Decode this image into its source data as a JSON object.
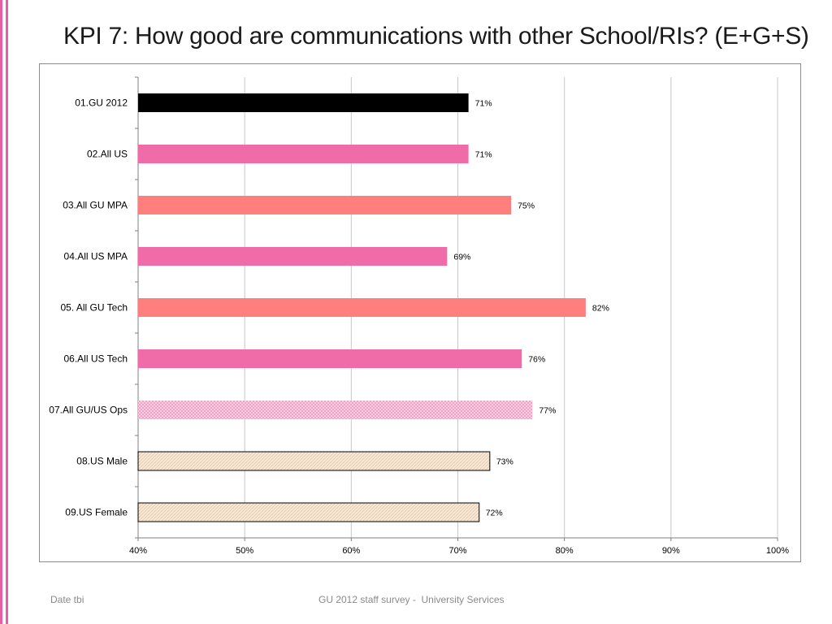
{
  "slide": {
    "title": "KPI 7: How good are communications with other School/RIs? (E+G+S)",
    "footer_left": "Date tbi",
    "footer_center": "GU 2012 staff survey -  University Services",
    "accent_color": "#e85ea6"
  },
  "chart_data": {
    "type": "bar",
    "orientation": "horizontal",
    "categories": [
      "01.GU 2012",
      "02.All US",
      "03.All GU MPA",
      "04.All US MPA",
      "05. All GU Tech",
      "06.All US Tech",
      "07.All GU/US Ops",
      "08.US Male",
      "09.US Female"
    ],
    "values": [
      71,
      71,
      75,
      69,
      82,
      76,
      77,
      73,
      72
    ],
    "data_labels": [
      "71%",
      "71%",
      "75%",
      "69%",
      "82%",
      "76%",
      "77%",
      "73%",
      "72%"
    ],
    "bar_styles": [
      {
        "fill": "#000000",
        "pattern": "solid",
        "border": "none"
      },
      {
        "fill": "#f06ca8",
        "pattern": "solid",
        "border": "none"
      },
      {
        "fill": "#ff7f7f",
        "pattern": "solid",
        "border": "none"
      },
      {
        "fill": "#f06ca8",
        "pattern": "solid",
        "border": "none"
      },
      {
        "fill": "#ff7f7f",
        "pattern": "solid",
        "border": "none"
      },
      {
        "fill": "#f06ca8",
        "pattern": "solid",
        "border": "none"
      },
      {
        "fill": "#f7a1c9",
        "pattern": "dotted",
        "border": "none"
      },
      {
        "fill": "#f8dcc4",
        "pattern": "hatched",
        "border": "#000000"
      },
      {
        "fill": "#f8dcc4",
        "pattern": "hatched",
        "border": "#000000"
      }
    ],
    "xlim": [
      40,
      100
    ],
    "xticks": [
      40,
      50,
      60,
      70,
      80,
      90,
      100
    ],
    "xtick_labels": [
      "40%",
      "50%",
      "60%",
      "70%",
      "80%",
      "90%",
      "100%"
    ],
    "grid": true,
    "legend": "none",
    "title": "",
    "xlabel": "",
    "ylabel": ""
  }
}
